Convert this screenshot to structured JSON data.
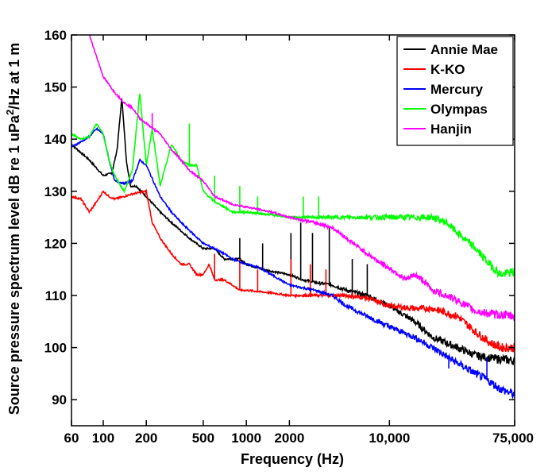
{
  "chart_data": {
    "type": "line",
    "title": "",
    "xlabel": "Frequency (Hz)",
    "ylabel": "Source pressure spectrum level dB re 1 uPa",
    "ylabel_sup": "2",
    "ylabel_tail": "/Hz at 1 m",
    "x_scale": "log",
    "xlim": [
      60,
      75000
    ],
    "ylim": [
      85,
      160
    ],
    "x_ticks": [
      60,
      100,
      200,
      500,
      1000,
      2000,
      10000,
      75000
    ],
    "x_tick_labels": [
      "60",
      "100",
      "200",
      "500",
      "1000",
      "2000",
      "10,000",
      "75,000"
    ],
    "y_ticks": [
      90,
      100,
      110,
      120,
      130,
      140,
      150,
      160
    ],
    "y_tick_labels": [
      "90",
      "100",
      "110",
      "120",
      "130",
      "140",
      "150",
      "160"
    ],
    "legend_position": "top-right",
    "grid": false,
    "series": [
      {
        "name": "Annie Mae",
        "color": "#000000",
        "points": [
          [
            60,
            139
          ],
          [
            80,
            136
          ],
          [
            100,
            133
          ],
          [
            115,
            133.5
          ],
          [
            125,
            138
          ],
          [
            135,
            148
          ],
          [
            145,
            136
          ],
          [
            155,
            131
          ],
          [
            170,
            131
          ],
          [
            200,
            129
          ],
          [
            250,
            126
          ],
          [
            300,
            124
          ],
          [
            400,
            121
          ],
          [
            500,
            119
          ],
          [
            600,
            119
          ],
          [
            700,
            117
          ],
          [
            800,
            117
          ],
          [
            900,
            117
          ],
          [
            1000,
            116
          ],
          [
            1300,
            115
          ],
          [
            1600,
            114.5
          ],
          [
            2000,
            114
          ],
          [
            2500,
            113
          ],
          [
            3000,
            112.5
          ],
          [
            4000,
            112
          ],
          [
            5000,
            111
          ],
          [
            7000,
            110
          ],
          [
            10000,
            108
          ],
          [
            15000,
            105
          ],
          [
            20000,
            102
          ],
          [
            30000,
            100
          ],
          [
            40000,
            98.5
          ],
          [
            50000,
            98
          ],
          [
            75000,
            97.5
          ]
        ],
        "peaks": [
          [
            900,
            121
          ],
          [
            1300,
            120
          ],
          [
            2050,
            122
          ],
          [
            2400,
            124
          ],
          [
            2900,
            122
          ],
          [
            3800,
            123
          ],
          [
            5500,
            117
          ],
          [
            7000,
            116
          ]
        ]
      },
      {
        "name": "K-KO",
        "color": "#ff0000",
        "points": [
          [
            60,
            129
          ],
          [
            70,
            128.5
          ],
          [
            80,
            126
          ],
          [
            90,
            128
          ],
          [
            100,
            130
          ],
          [
            110,
            129
          ],
          [
            120,
            128.5
          ],
          [
            140,
            129
          ],
          [
            160,
            129.5
          ],
          [
            200,
            130
          ],
          [
            220,
            124
          ],
          [
            250,
            121
          ],
          [
            300,
            118
          ],
          [
            350,
            116
          ],
          [
            400,
            116
          ],
          [
            450,
            114
          ],
          [
            500,
            114
          ],
          [
            550,
            116
          ],
          [
            600,
            113
          ],
          [
            700,
            113
          ],
          [
            800,
            112
          ],
          [
            900,
            111
          ],
          [
            1000,
            111
          ],
          [
            1500,
            110.5
          ],
          [
            2000,
            110
          ],
          [
            3000,
            110
          ],
          [
            5000,
            110
          ],
          [
            7000,
            109.5
          ],
          [
            10000,
            108
          ],
          [
            15000,
            107.5
          ],
          [
            20000,
            107.5
          ],
          [
            30000,
            106
          ],
          [
            40000,
            103
          ],
          [
            50000,
            101
          ],
          [
            60000,
            100
          ],
          [
            75000,
            100
          ]
        ],
        "peaks": [
          [
            600,
            118
          ],
          [
            900,
            117
          ],
          [
            1200,
            115
          ],
          [
            2050,
            117
          ],
          [
            2800,
            116
          ],
          [
            3600,
            115
          ]
        ]
      },
      {
        "name": "Mercury",
        "color": "#0000ff",
        "points": [
          [
            60,
            138.5
          ],
          [
            70,
            139.5
          ],
          [
            80,
            140.5
          ],
          [
            90,
            142
          ],
          [
            100,
            141
          ],
          [
            110,
            136
          ],
          [
            120,
            132
          ],
          [
            140,
            131.5
          ],
          [
            160,
            132
          ],
          [
            180,
            136
          ],
          [
            200,
            135
          ],
          [
            250,
            129
          ],
          [
            300,
            126
          ],
          [
            350,
            124
          ],
          [
            400,
            122.5
          ],
          [
            500,
            120
          ],
          [
            600,
            119
          ],
          [
            700,
            118
          ],
          [
            800,
            117
          ],
          [
            1000,
            116
          ],
          [
            1200,
            115.5
          ],
          [
            1500,
            114
          ],
          [
            2000,
            112
          ],
          [
            3000,
            111
          ],
          [
            4000,
            110
          ],
          [
            5000,
            108
          ],
          [
            7000,
            106
          ],
          [
            10000,
            104
          ],
          [
            15000,
            102
          ],
          [
            20000,
            100
          ],
          [
            30000,
            97
          ],
          [
            40000,
            95
          ],
          [
            50000,
            93.5
          ],
          [
            60000,
            92
          ],
          [
            75000,
            91
          ]
        ],
        "peaks": [
          [
            26000,
            96
          ],
          [
            48000,
            98
          ]
        ]
      },
      {
        "name": "Olympas",
        "color": "#00ff00",
        "points": [
          [
            60,
            141
          ],
          [
            70,
            140
          ],
          [
            80,
            140.5
          ],
          [
            90,
            143
          ],
          [
            100,
            141
          ],
          [
            110,
            136
          ],
          [
            120,
            133
          ],
          [
            140,
            130
          ],
          [
            160,
            134
          ],
          [
            180,
            149
          ],
          [
            200,
            135
          ],
          [
            220,
            142
          ],
          [
            250,
            131
          ],
          [
            300,
            139
          ],
          [
            350,
            136
          ],
          [
            400,
            135
          ],
          [
            450,
            135
          ],
          [
            500,
            130
          ],
          [
            600,
            128
          ],
          [
            700,
            127
          ],
          [
            800,
            126
          ],
          [
            1000,
            126
          ],
          [
            1500,
            125.5
          ],
          [
            2000,
            125
          ],
          [
            3000,
            125
          ],
          [
            5000,
            125
          ],
          [
            7000,
            125
          ],
          [
            10000,
            125
          ],
          [
            15000,
            125
          ],
          [
            20000,
            125
          ],
          [
            25000,
            124
          ],
          [
            30000,
            122
          ],
          [
            40000,
            119
          ],
          [
            50000,
            116
          ],
          [
            60000,
            114
          ],
          [
            75000,
            114.5
          ]
        ],
        "peaks": [
          [
            400,
            143
          ],
          [
            600,
            133
          ],
          [
            900,
            131
          ],
          [
            1200,
            129
          ],
          [
            2500,
            129
          ],
          [
            3200,
            129
          ]
        ]
      },
      {
        "name": "Hanjin",
        "color": "#ff00ff",
        "points": [
          [
            80,
            160
          ],
          [
            100,
            152
          ],
          [
            120,
            149
          ],
          [
            140,
            147
          ],
          [
            160,
            146
          ],
          [
            180,
            144
          ],
          [
            200,
            143
          ],
          [
            250,
            141
          ],
          [
            300,
            138
          ],
          [
            350,
            136
          ],
          [
            400,
            134
          ],
          [
            500,
            132
          ],
          [
            600,
            129
          ],
          [
            800,
            127.5
          ],
          [
            1000,
            127
          ],
          [
            1500,
            126
          ],
          [
            2000,
            125
          ],
          [
            3000,
            124
          ],
          [
            4000,
            123
          ],
          [
            5000,
            121
          ],
          [
            7000,
            118
          ],
          [
            9000,
            116
          ],
          [
            11000,
            114.5
          ],
          [
            13000,
            113
          ],
          [
            15000,
            114
          ],
          [
            17000,
            113
          ],
          [
            20000,
            111
          ],
          [
            25000,
            110
          ],
          [
            30000,
            109
          ],
          [
            40000,
            107
          ],
          [
            50000,
            106.5
          ],
          [
            75000,
            106
          ]
        ],
        "peaks": [
          [
            220,
            145
          ]
        ]
      }
    ]
  }
}
